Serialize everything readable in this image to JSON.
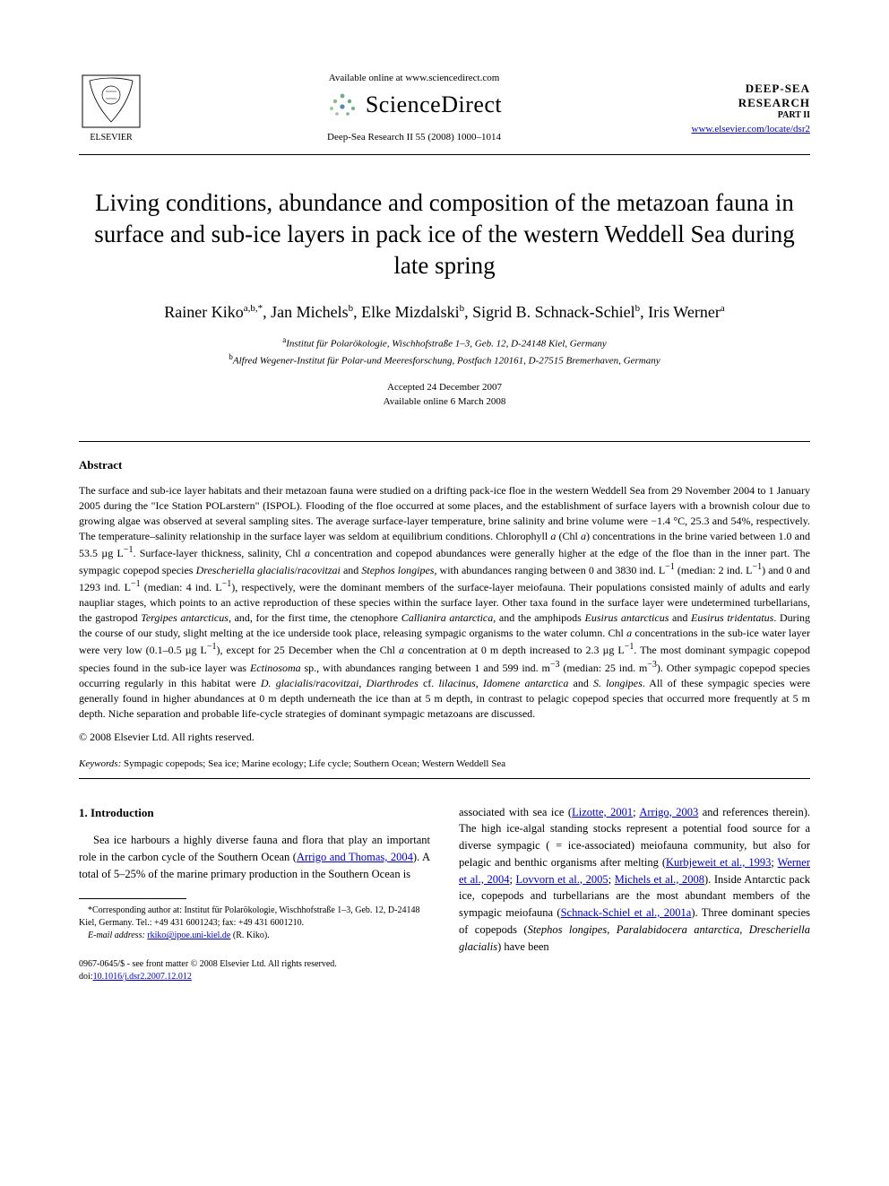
{
  "header": {
    "available_online": "Available online at www.sciencedirect.com",
    "sciencedirect_label": "ScienceDirect",
    "journal_line": "Deep-Sea Research II 55 (2008) 1000–1014",
    "locate_url": "www.elsevier.com/locate/dsr2",
    "dsr_line1": "DEEP-SEA RESEARCH",
    "dsr_line2": "PART II"
  },
  "title": "Living conditions, abundance and composition of the metazoan fauna in surface and sub-ice layers in pack ice of the western Weddell Sea during late spring",
  "authors_html": "Rainer Kiko<sup>a,b,*</sup>, Jan Michels<sup>b</sup>, Elke Mizdalski<sup>b</sup>, Sigrid B. Schnack-Schiel<sup>b</sup>, Iris Werner<sup>a</sup>",
  "affiliations": {
    "a": "Institut für Polarökologie, Wischhofstraße 1–3, Geb. 12, D-24148 Kiel, Germany",
    "b": "Alfred Wegener-Institut für Polar-und Meeresforschung, Postfach 120161, D-27515 Bremerhaven, Germany"
  },
  "dates": {
    "accepted": "Accepted 24 December 2007",
    "online": "Available online 6 March 2008"
  },
  "abstract": {
    "heading": "Abstract",
    "body": "The surface and sub-ice layer habitats and their metazoan fauna were studied on a drifting pack-ice floe in the western Weddell Sea from 29 November 2004 to 1 January 2005 during the \"Ice Station POLarstern\" (ISPOL). Flooding of the floe occurred at some places, and the establishment of surface layers with a brownish colour due to growing algae was observed at several sampling sites. The average surface-layer temperature, brine salinity and brine volume were −1.4 °C, 25.3 and 54%, respectively. The temperature–salinity relationship in the surface layer was seldom at equilibrium conditions. Chlorophyll a (Chl a) concentrations in the brine varied between 1.0 and 53.5 µg L⁻¹. Surface-layer thickness, salinity, Chl a concentration and copepod abundances were generally higher at the edge of the floe than in the inner part. The sympagic copepod species Drescheriella glacialis/racovitzai and Stephos longipes, with abundances ranging between 0 and 3830 ind. L⁻¹ (median: 2 ind. L⁻¹) and 0 and 1293 ind. L⁻¹ (median: 4 ind. L⁻¹), respectively, were the dominant members of the surface-layer meiofauna. Their populations consisted mainly of adults and early naupliar stages, which points to an active reproduction of these species within the surface layer. Other taxa found in the surface layer were undetermined turbellarians, the gastropod Tergipes antarcticus, and, for the first time, the ctenophore Callianira antarctica, and the amphipods Eusirus antarcticus and Eusirus tridentatus. During the course of our study, slight melting at the ice underside took place, releasing sympagic organisms to the water column. Chl a concentrations in the sub-ice water layer were very low (0.1–0.5 µg L⁻¹), except for 25 December when the Chl a concentration at 0 m depth increased to 2.3 µg L⁻¹. The most dominant sympagic copepod species found in the sub-ice layer was Ectinosoma sp., with abundances ranging between 1 and 599 ind. m⁻³ (median: 25 ind. m⁻³). Other sympagic copepod species occurring regularly in this habitat were D. glacialis/racovitzai, Diarthrodes cf. lilacinus, Idomene antarctica and S. longipes. All of these sympagic species were generally found in higher abundances at 0 m depth underneath the ice than at 5 m depth, in contrast to pelagic copepod species that occurred more frequently at 5 m depth. Niche separation and probable life-cycle strategies of dominant sympagic metazoans are discussed.",
    "copyright": "© 2008 Elsevier Ltd. All rights reserved."
  },
  "keywords": {
    "label": "Keywords:",
    "text": "Sympagic copepods; Sea ice; Marine ecology; Life cycle; Southern Ocean; Western Weddell Sea"
  },
  "section1": {
    "heading": "1.  Introduction",
    "left_para": "Sea ice harbours a highly diverse fauna and flora that play an important role in the carbon cycle of the Southern Ocean (Arrigo and Thomas, 2004). A total of 5–25% of the marine primary production in the Southern Ocean is",
    "right_para": "associated with sea ice (Lizotte, 2001; Arrigo, 2003 and references therein). The high ice-algal standing stocks represent a potential food source for a diverse sympagic ( = ice-associated) meiofauna community, but also for pelagic and benthic organisms after melting (Kurbjeweit et al., 1993; Werner et al., 2004; Lovvorn et al., 2005; Michels et al., 2008). Inside Antarctic pack ice, copepods and turbellarians are the most abundant members of the sympagic meiofauna (Schnack-Schiel et al., 2001a). Three dominant species of copepods (Stephos longipes, Paralabidocera antarctica, Drescheriella glacialis) have been"
  },
  "footnote": {
    "corr": "*Corresponding author at: Institut für Polarökologie, Wischhofstraße 1–3, Geb. 12, D-24148 Kiel, Germany. Tel.: +49 431 6001243; fax: +49 431 6001210.",
    "email_label": "E-mail address:",
    "email": "rkiko@ipoe.uni-kiel.de",
    "email_tail": " (R. Kiko)."
  },
  "doi": {
    "front_matter": "0967-0645/$ - see front matter © 2008 Elsevier Ltd. All rights reserved.",
    "doi_label": "doi:",
    "doi_value": "10.1016/j.dsr2.2007.12.012"
  },
  "colors": {
    "text": "#000000",
    "link": "#0000cc",
    "bg": "#ffffff"
  }
}
